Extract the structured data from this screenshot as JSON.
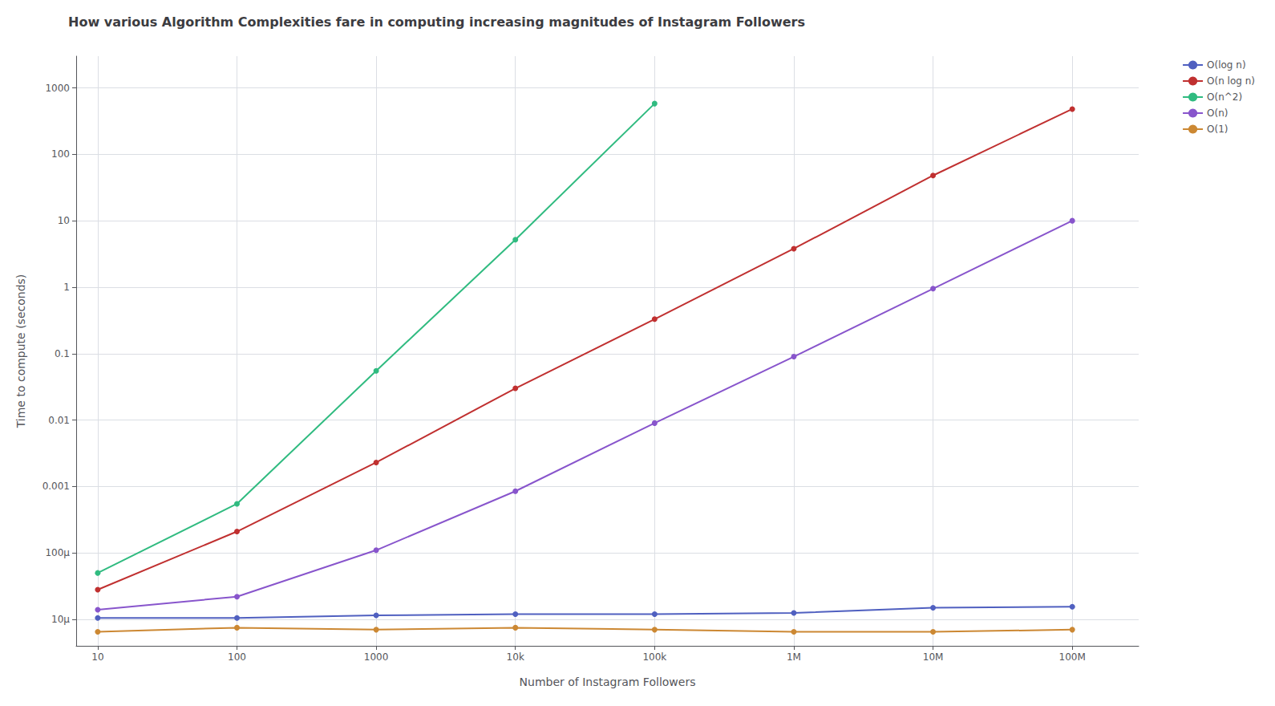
{
  "chart_data": {
    "type": "line",
    "title": "How various Algorithm Complexities fare in computing increasing magnitudes of Instagram Followers",
    "xlabel": "Number of Instagram Followers",
    "ylabel": "Time to compute (seconds)",
    "x": [
      10,
      100,
      1000,
      10000,
      100000,
      1000000,
      10000000,
      100000000
    ],
    "series": [
      {
        "name": "O(log n)",
        "color": "#5060c0",
        "values": [
          1.05e-05,
          1.05e-05,
          1.15e-05,
          1.2e-05,
          1.2e-05,
          1.25e-05,
          1.5e-05,
          1.55e-05
        ]
      },
      {
        "name": "O(n log n)",
        "color": "#c03030",
        "values": [
          2.8e-05,
          0.00021,
          0.0023,
          0.03,
          0.33,
          3.8,
          48.0,
          480.0
        ]
      },
      {
        "name": "O(n^2)",
        "color": "#30bb80",
        "values": [
          5e-05,
          0.00055,
          0.055,
          5.2,
          580.0,
          null,
          null,
          null
        ]
      },
      {
        "name": "O(n)",
        "color": "#8855cc",
        "values": [
          1.4e-05,
          2.2e-05,
          0.00011,
          0.00085,
          0.009,
          0.09,
          0.95,
          10.0
        ]
      },
      {
        "name": "O(1)",
        "color": "#cc8833",
        "values": [
          6.5e-06,
          7.5e-06,
          7e-06,
          7.5e-06,
          7e-06,
          6.5e-06,
          6.5e-06,
          7e-06
        ]
      }
    ],
    "xlim": [
      7,
      300000000
    ],
    "ylim": [
      4e-06,
      3000
    ],
    "xticks": [
      10,
      100,
      1000,
      {
        "value": 10000,
        "label": "10k"
      },
      {
        "value": 100000,
        "label": "100k"
      },
      {
        "value": 1000000,
        "label": "1M"
      },
      {
        "value": 10000000,
        "label": "10M"
      },
      {
        "value": 100000000,
        "label": "100M"
      }
    ],
    "yticks": [
      {
        "value": 1e-05,
        "label": "10μ"
      },
      {
        "value": 0.0001,
        "label": "100μ"
      },
      0.001,
      0.01,
      0.1,
      1,
      10,
      100,
      1000
    ],
    "log": true,
    "grid": true,
    "legend": "right",
    "marker": "circle"
  }
}
